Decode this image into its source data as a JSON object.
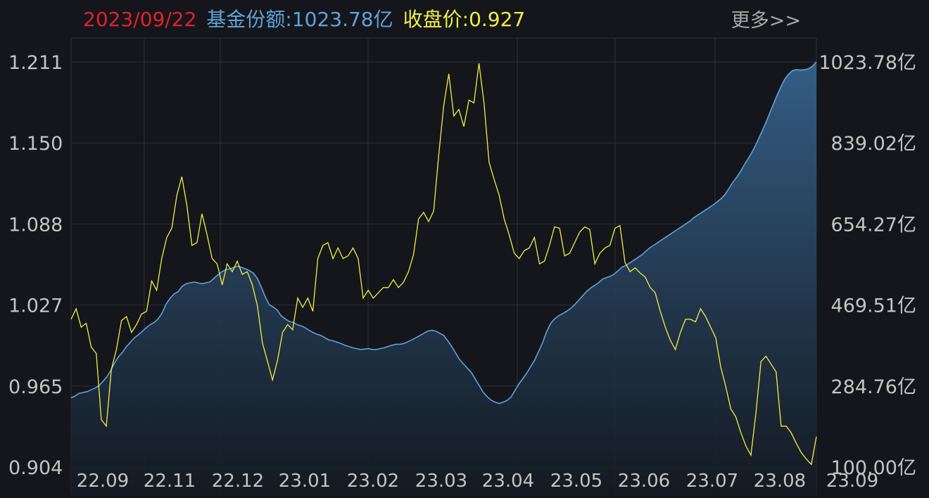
{
  "header": {
    "date": "2023/09/22",
    "share_label": "基金份额:",
    "share_value": "1023.78亿",
    "close_label": "收盘价:",
    "close_value": "0.927",
    "more_label": "更多>>"
  },
  "colors": {
    "background": "#14161b",
    "grid": "#2c3038",
    "date": "#e0222b",
    "share": "#5fa3d8",
    "price_line": "#f1ef42",
    "axis_text": "#c4c4c4",
    "area_top": "#36618a",
    "area_bottom": "#141a22"
  },
  "chart_data": {
    "type": "line",
    "x_tick_labels": [
      "22.09",
      "22.11",
      "22.12",
      "23.01",
      "23.02",
      "23.03",
      "23.04",
      "23.05",
      "23.06",
      "23.07",
      "23.08",
      "23.09"
    ],
    "left_axis": {
      "tick_labels": [
        "1.211",
        "1.150",
        "1.088",
        "1.027",
        "0.965",
        "0.904"
      ],
      "ylim": [
        0.904,
        1.211
      ]
    },
    "right_axis": {
      "tick_labels": [
        "1023.78亿",
        "839.02亿",
        "654.27亿",
        "469.51亿",
        "284.76亿",
        "100.00亿"
      ],
      "ylim": [
        100.0,
        1023.78
      ]
    },
    "grid": true,
    "series": [
      {
        "name": "收盘价",
        "axis": "left",
        "color": "#f1ef42",
        "values": [
          1.016,
          1.024,
          1.01,
          1.013,
          0.995,
          0.99,
          0.94,
          0.935,
          0.978,
          0.993,
          1.015,
          1.018,
          1.006,
          1.012,
          1.02,
          1.022,
          1.045,
          1.038,
          1.062,
          1.078,
          1.085,
          1.11,
          1.124,
          1.102,
          1.072,
          1.074,
          1.096,
          1.08,
          1.062,
          1.058,
          1.042,
          1.058,
          1.052,
          1.06,
          1.05,
          1.052,
          1.042,
          1.026,
          0.998,
          0.984,
          0.97,
          0.985,
          1.006,
          1.012,
          1.008,
          1.032,
          1.025,
          1.032,
          1.022,
          1.062,
          1.072,
          1.074,
          1.062,
          1.07,
          1.062,
          1.064,
          1.07,
          1.062,
          1.032,
          1.038,
          1.032,
          1.036,
          1.04,
          1.04,
          1.046,
          1.04,
          1.044,
          1.052,
          1.065,
          1.092,
          1.097,
          1.09,
          1.098,
          1.14,
          1.178,
          1.202,
          1.17,
          1.175,
          1.162,
          1.182,
          1.18,
          1.21,
          1.18,
          1.135,
          1.122,
          1.11,
          1.092,
          1.08,
          1.066,
          1.062,
          1.068,
          1.07,
          1.078,
          1.058,
          1.06,
          1.072,
          1.086,
          1.085,
          1.064,
          1.066,
          1.074,
          1.082,
          1.086,
          1.084,
          1.058,
          1.066,
          1.07,
          1.072,
          1.085,
          1.087,
          1.059,
          1.052,
          1.055,
          1.051,
          1.048,
          1.04,
          1.036,
          1.022,
          1.01,
          1.0,
          0.993,
          1.006,
          1.016,
          1.016,
          1.014,
          1.024,
          1.018,
          1.01,
          1.002,
          0.98,
          0.965,
          0.948,
          0.942,
          0.93,
          0.92,
          0.913,
          0.945,
          0.984,
          0.988,
          0.982,
          0.976,
          0.935,
          0.935,
          0.93,
          0.922,
          0.915,
          0.91,
          0.906,
          0.927
        ]
      },
      {
        "name": "基金份额",
        "axis": "right",
        "color": "#5fa3d8",
        "unit": "亿",
        "values": [
          258,
          262,
          268,
          270,
          272,
          276,
          280,
          285,
          295,
          305,
          320,
          338,
          352,
          362,
          375,
          385,
          395,
          402,
          410,
          418,
          425,
          430,
          438,
          452,
          472,
          485,
          495,
          500,
          512,
          518,
          520,
          522,
          520,
          518,
          520,
          522,
          530,
          538,
          545,
          550,
          552,
          555,
          558,
          555,
          552,
          548,
          542,
          530,
          510,
          488,
          470,
          465,
          458,
          445,
          438,
          432,
          430,
          425,
          422,
          418,
          412,
          407,
          403,
          400,
          395,
          390,
          388,
          385,
          382,
          378,
          375,
          372,
          370,
          368,
          369,
          370,
          368,
          368,
          370,
          372,
          375,
          378,
          380,
          380,
          382,
          386,
          390,
          395,
          400,
          405,
          410,
          412,
          410,
          405,
          400,
          388,
          375,
          360,
          345,
          335,
          325,
          315,
          300,
          285,
          270,
          260,
          252,
          248,
          245,
          248,
          252,
          260,
          275,
          290,
          302,
          315,
          330,
          345,
          365,
          385,
          410,
          428,
          438,
          445,
          450,
          455,
          462,
          470,
          480,
          490,
          500,
          508,
          514,
          520,
          528,
          532,
          535,
          540,
          548,
          556,
          560,
          566,
          572,
          578,
          584,
          592,
          600,
          606,
          612,
          618,
          624,
          630,
          636,
          642,
          648,
          654,
          660,
          668,
          674,
          680,
          686,
          692,
          698,
          705,
          712,
          722,
          736,
          750,
          762,
          776,
          792,
          806,
          822,
          840,
          860,
          880,
          902,
          924,
          946,
          966,
          984,
          996,
          1004,
          1006,
          1005,
          1006,
          1008,
          1014,
          1023.78
        ]
      }
    ],
    "last_values": {
      "date": "2023/09/22",
      "close": 0.927,
      "share": 1023.78
    }
  }
}
